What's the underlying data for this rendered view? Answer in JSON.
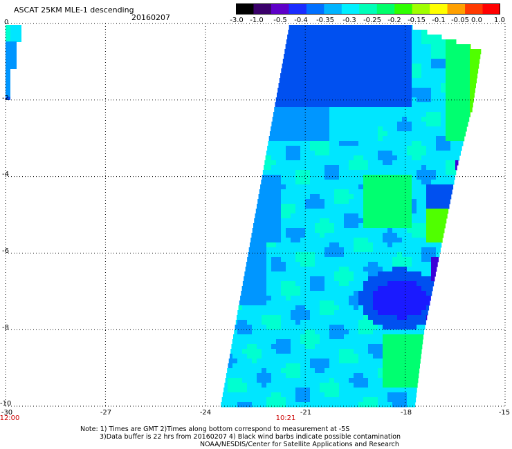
{
  "header": {
    "title": "ASCAT 25KM MLE-1 descending",
    "date": "20160207"
  },
  "colorbar": {
    "tick_labels": [
      "-3.0",
      "-1.0",
      "-0.5",
      "-0.4",
      "-0.35",
      "-0.3",
      "-0.25",
      "-0.2",
      "-0.15",
      "-0.1",
      "-0.05",
      "0.0",
      "1.0"
    ],
    "colors": [
      "#000000",
      "#3a006a",
      "#5e00c8",
      "#1a2cff",
      "#0070ff",
      "#00b4ff",
      "#00f0ff",
      "#00ffb8",
      "#00ff6a",
      "#30ff00",
      "#a0ff00",
      "#ffff00",
      "#ffa000",
      "#ff3a00",
      "#ff0000"
    ]
  },
  "axes": {
    "x_ticks": [
      "-30",
      "-27",
      "-24",
      "-21",
      "-18",
      "-15"
    ],
    "y_ticks": [
      "0",
      "-2",
      "-4",
      "-6",
      "-8",
      "-10"
    ],
    "lon_range": [
      -30,
      -15
    ],
    "lat_range": [
      -10,
      0
    ],
    "grid": "dotted"
  },
  "times": {
    "left": "12:00",
    "middle": "10:21"
  },
  "notes": {
    "line1": "Note: 1) Times are GMT 2)Times along bottom correspond to measurement at -5S",
    "line2": "3)Data buffer is 22 hrs from 20160207 4) Black wind barbs indicate possible contamination",
    "line3": "NOAA/NESDIS/Center for Satellite Applications and Research"
  },
  "swath": {
    "description_colors": {
      "deep_blue": "#0050f0",
      "mid_blue": "#0096ff",
      "cyan": "#00e6ff",
      "aqua": "#00ffd0",
      "green": "#00ff70",
      "lime": "#50ff00",
      "purple": "#3c00d8"
    }
  }
}
